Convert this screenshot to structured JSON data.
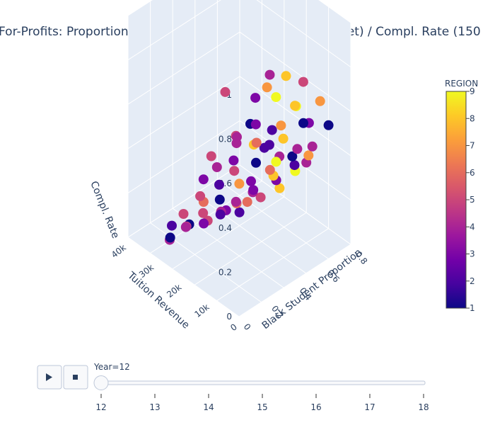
{
  "chart_data": {
    "type": "scatter",
    "title": "For-Profits: Proportion Black Students / Tuition Revenue (Net) / Compl. Rate  (150",
    "axes": {
      "x": {
        "label": "Black Student Proportion",
        "ticks": [
          "0",
          "0.2",
          "0.4",
          "0.6",
          "0.8"
        ]
      },
      "y": {
        "label": "Tuition Revenue",
        "ticks": [
          "0",
          "10k",
          "20k",
          "30k",
          "40k"
        ]
      },
      "z": {
        "label": "Compl. Rate",
        "ticks": [
          "0",
          "0.2",
          "0.4",
          "0.6",
          "0.8",
          "1"
        ],
        "range": [
          0,
          1
        ]
      }
    },
    "colorbar": {
      "title": "REGION",
      "ticks": [
        "1",
        "2",
        "3",
        "4",
        "5",
        "6",
        "7",
        "8",
        "9"
      ],
      "range": [
        1,
        9
      ],
      "colorscale": [
        "#0d0887",
        "#46039f",
        "#7201a8",
        "#9c179e",
        "#bd3786",
        "#d8576b",
        "#ed7953",
        "#fb9f3a",
        "#fdca26",
        "#f0f921"
      ]
    },
    "points": [
      [
        0.35,
        3000,
        0.95,
        4
      ],
      [
        0.1,
        9000,
        0.9,
        5
      ],
      [
        0.25,
        4000,
        0.75,
        3
      ],
      [
        0.48,
        6000,
        0.78,
        9
      ],
      [
        0.6,
        4000,
        0.72,
        8
      ],
      [
        0.05,
        12000,
        0.6,
        5
      ],
      [
        0.3,
        8000,
        0.7,
        1
      ],
      [
        0.42,
        5000,
        0.66,
        2
      ],
      [
        0.55,
        7000,
        0.62,
        7
      ],
      [
        0.7,
        5000,
        0.6,
        1
      ],
      [
        0.2,
        10000,
        0.55,
        3
      ],
      [
        0.15,
        14000,
        0.5,
        4
      ],
      [
        0.38,
        9000,
        0.58,
        6
      ],
      [
        0.5,
        11000,
        0.5,
        2
      ],
      [
        0.62,
        9000,
        0.52,
        8
      ],
      [
        0.8,
        7000,
        0.55,
        3
      ],
      [
        0.28,
        13000,
        0.45,
        5
      ],
      [
        0.45,
        12000,
        0.44,
        1
      ],
      [
        0.58,
        10000,
        0.42,
        9
      ],
      [
        0.72,
        8000,
        0.45,
        4
      ],
      [
        0.1,
        18000,
        0.35,
        5
      ],
      [
        0.22,
        16000,
        0.38,
        2
      ],
      [
        0.35,
        14000,
        0.36,
        7
      ],
      [
        0.48,
        15000,
        0.32,
        3
      ],
      [
        0.6,
        13000,
        0.35,
        6
      ],
      [
        0.75,
        11000,
        0.38,
        1
      ],
      [
        0.88,
        9000,
        0.4,
        4
      ],
      [
        0.05,
        22000,
        0.25,
        5
      ],
      [
        0.18,
        20000,
        0.28,
        6
      ],
      [
        0.3,
        19000,
        0.26,
        1
      ],
      [
        0.42,
        18000,
        0.22,
        4
      ],
      [
        0.55,
        17000,
        0.24,
        3
      ],
      [
        0.68,
        15000,
        0.28,
        8
      ],
      [
        0.82,
        13000,
        0.3,
        2
      ],
      [
        0.12,
        24000,
        0.15,
        4
      ],
      [
        0.25,
        23000,
        0.18,
        5
      ],
      [
        0.38,
        22000,
        0.14,
        2
      ],
      [
        0.5,
        21000,
        0.16,
        6
      ],
      [
        0.62,
        20000,
        0.18,
        4
      ],
      [
        0.78,
        18000,
        0.2,
        3
      ],
      [
        0.9,
        16000,
        0.22,
        9
      ],
      [
        0.08,
        28000,
        0.08,
        1
      ],
      [
        0.2,
        27000,
        0.1,
        5
      ],
      [
        0.33,
        26000,
        0.08,
        3
      ],
      [
        0.46,
        25000,
        0.1,
        4
      ],
      [
        0.6,
        24000,
        0.06,
        2
      ],
      [
        0.74,
        22000,
        0.1,
        5
      ],
      [
        0.86,
        20000,
        0.12,
        8
      ],
      [
        0.15,
        31000,
        0.02,
        4
      ],
      [
        0.3,
        30000,
        0.05,
        1
      ],
      [
        0.44,
        29000,
        0.03,
        5
      ],
      [
        0.58,
        28000,
        0.04,
        3
      ],
      [
        0.72,
        26000,
        0.05,
        6
      ],
      [
        0.4,
        6000,
        0.85,
        7
      ],
      [
        0.52,
        4000,
        0.88,
        8
      ],
      [
        0.65,
        3000,
        0.82,
        5
      ],
      [
        0.32,
        7000,
        0.82,
        3
      ],
      [
        0.18,
        8000,
        0.68,
        4
      ],
      [
        0.66,
        6000,
        0.68,
        9
      ],
      [
        0.85,
        5000,
        0.65,
        7
      ],
      [
        0.95,
        6000,
        0.5,
        1
      ],
      [
        0.08,
        16000,
        0.45,
        3
      ],
      [
        0.4,
        17000,
        0.5,
        4
      ],
      [
        0.53,
        16000,
        0.46,
        8
      ],
      [
        0.66,
        12000,
        0.4,
        4
      ],
      [
        0.92,
        12000,
        0.32,
        7
      ],
      [
        0.02,
        25000,
        0.18,
        2
      ],
      [
        0.95,
        14000,
        0.26,
        4
      ],
      [
        0.27,
        12000,
        0.62,
        5
      ],
      [
        0.47,
        8000,
        0.55,
        2
      ]
    ]
  },
  "slider": {
    "current_label": "Year=12",
    "ticks": [
      "12",
      "13",
      "14",
      "15",
      "16",
      "17",
      "18"
    ],
    "value": 12
  }
}
